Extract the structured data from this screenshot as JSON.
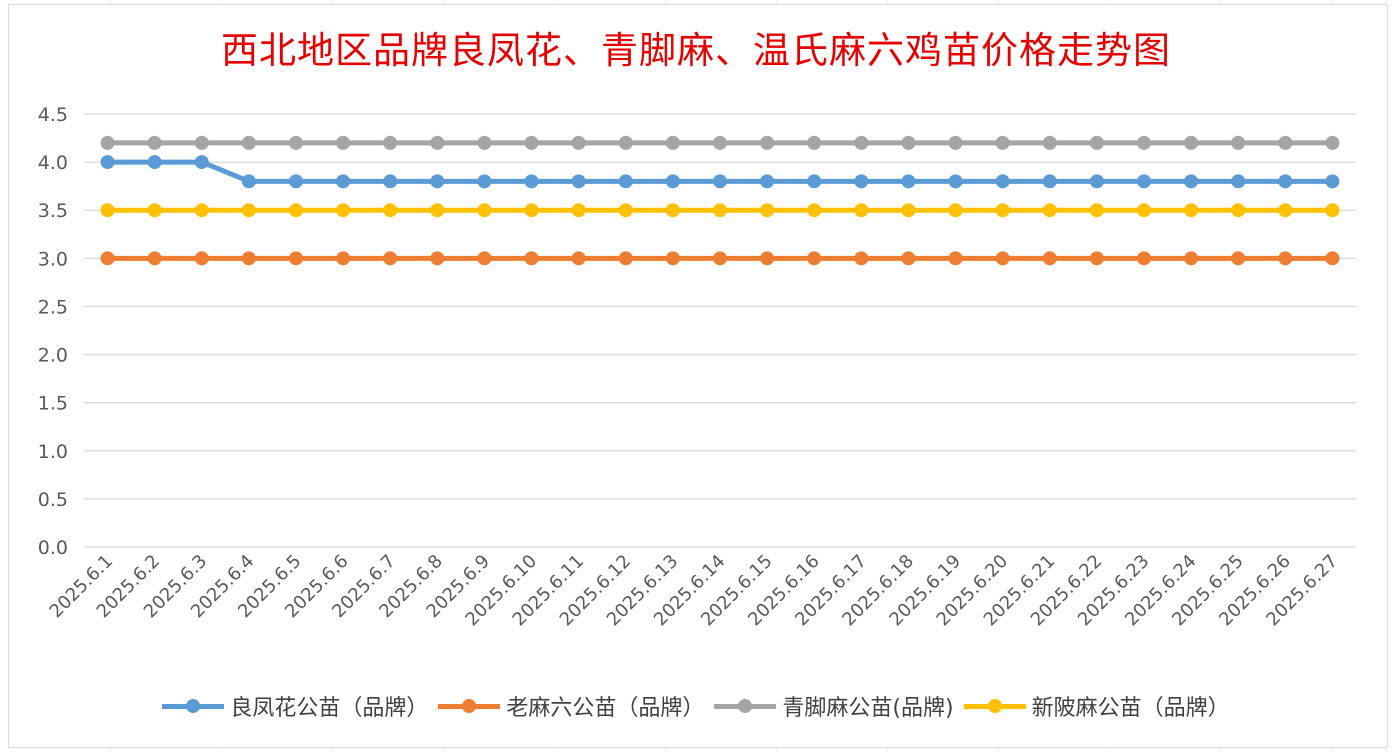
{
  "chart_data": {
    "type": "line",
    "title": "西北地区品牌良凤花、青脚麻、温氏麻六鸡苗价格走势图",
    "xlabel": "",
    "ylabel": "",
    "ylim": [
      0,
      4.5
    ],
    "yticks": [
      "0.0",
      "0.5",
      "1.0",
      "1.5",
      "2.0",
      "2.5",
      "3.0",
      "3.5",
      "4.0",
      "4.5"
    ],
    "grid": true,
    "legend_position": "bottom",
    "categories": [
      "2025.6.1",
      "2025.6.2",
      "2025.6.3",
      "2025.6.4",
      "2025.6.5",
      "2025.6.6",
      "2025.6.7",
      "2025.6.8",
      "2025.6.9",
      "2025.6.10",
      "2025.6.11",
      "2025.6.12",
      "2025.6.13",
      "2025.6.14",
      "2025.6.15",
      "2025.6.16",
      "2025.6.17",
      "2025.6.18",
      "2025.6.19",
      "2025.6.20",
      "2025.6.21",
      "2025.6.22",
      "2025.6.23",
      "2025.6.24",
      "2025.6.25",
      "2025.6.26",
      "2025.6.27"
    ],
    "series": [
      {
        "name": "良凤花公苗（品牌）",
        "color": "#5b9bd5",
        "values": [
          4.0,
          4.0,
          4.0,
          3.8,
          3.8,
          3.8,
          3.8,
          3.8,
          3.8,
          3.8,
          3.8,
          3.8,
          3.8,
          3.8,
          3.8,
          3.8,
          3.8,
          3.8,
          3.8,
          3.8,
          3.8,
          3.8,
          3.8,
          3.8,
          3.8,
          3.8,
          3.8
        ]
      },
      {
        "name": "老麻六公苗（品牌）",
        "color": "#ed7d31",
        "values": [
          3.0,
          3.0,
          3.0,
          3.0,
          3.0,
          3.0,
          3.0,
          3.0,
          3.0,
          3.0,
          3.0,
          3.0,
          3.0,
          3.0,
          3.0,
          3.0,
          3.0,
          3.0,
          3.0,
          3.0,
          3.0,
          3.0,
          3.0,
          3.0,
          3.0,
          3.0,
          3.0
        ]
      },
      {
        "name": "青脚麻公苗(品牌)",
        "color": "#a5a5a5",
        "values": [
          4.2,
          4.2,
          4.2,
          4.2,
          4.2,
          4.2,
          4.2,
          4.2,
          4.2,
          4.2,
          4.2,
          4.2,
          4.2,
          4.2,
          4.2,
          4.2,
          4.2,
          4.2,
          4.2,
          4.2,
          4.2,
          4.2,
          4.2,
          4.2,
          4.2,
          4.2,
          4.2
        ]
      },
      {
        "name": "新陂麻公苗（品牌）",
        "color": "#ffc000",
        "values": [
          3.5,
          3.5,
          3.5,
          3.5,
          3.5,
          3.5,
          3.5,
          3.5,
          3.5,
          3.5,
          3.5,
          3.5,
          3.5,
          3.5,
          3.5,
          3.5,
          3.5,
          3.5,
          3.5,
          3.5,
          3.5,
          3.5,
          3.5,
          3.5,
          3.5,
          3.5,
          3.5
        ]
      }
    ]
  }
}
